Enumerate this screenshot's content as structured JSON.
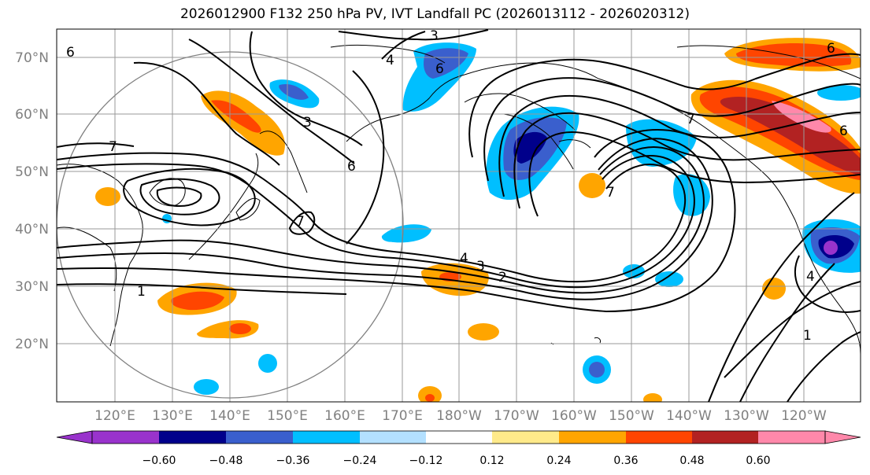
{
  "title": "2026012900 F132 250 hPa PV, IVT Landfall PC (2026013112 - 2026020312)",
  "lat_ticks": [
    "70°N",
    "60°N",
    "50°N",
    "40°N",
    "30°N",
    "20°N"
  ],
  "lon_ticks": [
    "120°E",
    "130°E",
    "140°E",
    "150°E",
    "160°E",
    "170°E",
    "180°W",
    "170°W",
    "160°W",
    "150°W",
    "140°W",
    "130°W",
    "120°W"
  ],
  "contour_labels": [
    "3",
    "6",
    "4",
    "6",
    "7",
    "3",
    "6",
    "7",
    "1",
    "2",
    "3",
    "4",
    "7",
    "6",
    "7",
    "6",
    "4",
    "1"
  ],
  "colorbar": {
    "ticks": [
      "−0.60",
      "−0.48",
      "−0.36",
      "−0.24",
      "−0.12",
      "0.12",
      "0.24",
      "0.36",
      "0.48",
      "0.60"
    ],
    "colors": [
      "#9933cc",
      "#00008b",
      "#3a5fcd",
      "#00bfff",
      "#b3e0ff",
      "#ffffff",
      "#ffea8a",
      "#ffa500",
      "#ff4500",
      "#b22222",
      "#ff88aa"
    ]
  }
}
